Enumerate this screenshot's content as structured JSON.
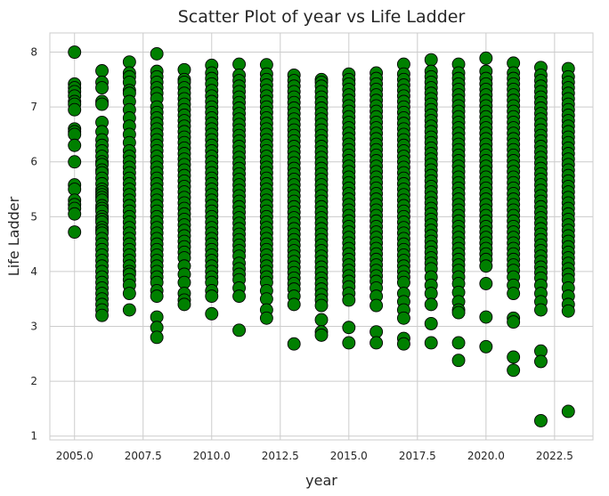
{
  "chart_data": {
    "type": "scatter",
    "title": "Scatter Plot of year vs Life Ladder",
    "xlabel": "year",
    "ylabel": "Life Ladder",
    "xlim": [
      2004.1,
      2023.9
    ],
    "ylim": [
      0.93,
      8.35
    ],
    "x_ticks": [
      2005.0,
      2007.5,
      2010.0,
      2012.5,
      2015.0,
      2017.5,
      2020.0,
      2022.5
    ],
    "x_tick_labels": [
      "2005.0",
      "2007.5",
      "2010.0",
      "2012.5",
      "2015.0",
      "2017.5",
      "2020.0",
      "2022.5"
    ],
    "y_ticks": [
      1,
      2,
      3,
      4,
      5,
      6,
      7,
      8
    ],
    "y_tick_labels": [
      "1",
      "2",
      "3",
      "4",
      "5",
      "6",
      "7",
      "8"
    ],
    "grid": true,
    "marker_color": "#008000",
    "marker_edge_color": "#000000",
    "points_by_year": [
      {
        "year": 2005,
        "values": [
          8.0,
          7.42,
          7.35,
          7.28,
          7.2,
          7.1,
          7.05,
          6.95,
          6.6,
          6.55,
          6.5,
          6.3,
          6.0,
          5.58,
          5.5,
          5.3,
          5.22,
          5.15,
          5.05,
          4.72
        ]
      },
      {
        "year": 2006,
        "values": [
          7.66,
          7.45,
          7.35,
          7.1,
          7.05,
          6.72,
          6.55,
          6.4,
          6.3,
          6.2,
          6.1,
          6.0,
          5.95,
          5.85,
          5.8,
          5.7,
          5.6,
          5.5,
          5.45,
          5.4,
          5.35,
          5.3,
          5.2,
          5.15,
          5.1,
          5.0,
          4.95,
          4.9,
          4.8,
          4.75,
          4.7,
          4.6,
          4.5,
          4.4,
          4.3,
          4.2,
          4.1,
          4.0,
          3.9,
          3.8,
          3.7,
          3.6,
          3.5,
          3.4,
          3.3,
          3.2
        ]
      },
      {
        "year": 2007,
        "values": [
          7.82,
          7.62,
          7.55,
          7.45,
          7.3,
          7.25,
          7.1,
          6.95,
          6.8,
          6.65,
          6.5,
          6.35,
          6.2,
          6.1,
          6.0,
          5.9,
          5.8,
          5.7,
          5.6,
          5.5,
          5.4,
          5.3,
          5.2,
          5.1,
          5.0,
          4.9,
          4.8,
          4.7,
          4.6,
          4.5,
          4.4,
          4.3,
          4.2,
          4.1,
          4.0,
          3.95,
          3.85,
          3.75,
          3.6,
          3.3
        ]
      },
      {
        "year": 2008,
        "values": [
          7.97,
          7.65,
          7.55,
          7.45,
          7.35,
          7.25,
          7.15,
          7.0,
          6.9,
          6.8,
          6.7,
          6.6,
          6.5,
          6.4,
          6.3,
          6.2,
          6.1,
          6.0,
          5.9,
          5.8,
          5.7,
          5.6,
          5.5,
          5.4,
          5.3,
          5.2,
          5.1,
          5.0,
          4.9,
          4.8,
          4.7,
          4.6,
          4.5,
          4.4,
          4.3,
          4.2,
          4.1,
          4.0,
          3.9,
          3.8,
          3.65,
          3.55,
          3.17,
          2.98,
          2.8
        ]
      },
      {
        "year": 2009,
        "values": [
          7.68,
          7.5,
          7.45,
          7.35,
          7.25,
          7.15,
          7.05,
          6.95,
          6.85,
          6.75,
          6.65,
          6.55,
          6.45,
          6.35,
          6.25,
          6.15,
          6.05,
          5.95,
          5.85,
          5.75,
          5.65,
          5.55,
          5.45,
          5.35,
          5.25,
          5.15,
          5.05,
          4.95,
          4.85,
          4.75,
          4.65,
          4.55,
          4.45,
          4.35,
          4.25,
          4.1,
          3.95,
          3.8,
          3.6,
          3.48,
          3.4
        ]
      },
      {
        "year": 2010,
        "values": [
          7.76,
          7.62,
          7.52,
          7.42,
          7.3,
          7.2,
          7.1,
          7.0,
          6.9,
          6.8,
          6.7,
          6.6,
          6.5,
          6.4,
          6.3,
          6.2,
          6.1,
          6.0,
          5.9,
          5.8,
          5.7,
          5.6,
          5.5,
          5.4,
          5.3,
          5.2,
          5.1,
          5.0,
          4.9,
          4.8,
          4.7,
          4.6,
          4.5,
          4.4,
          4.3,
          4.2,
          4.1,
          4.0,
          3.9,
          3.8,
          3.65,
          3.55,
          3.23
        ]
      },
      {
        "year": 2011,
        "values": [
          7.78,
          7.58,
          7.48,
          7.38,
          7.28,
          7.18,
          7.08,
          6.98,
          6.88,
          6.78,
          6.68,
          6.58,
          6.48,
          6.38,
          6.28,
          6.18,
          6.08,
          5.98,
          5.88,
          5.78,
          5.68,
          5.58,
          5.48,
          5.38,
          5.28,
          5.18,
          5.08,
          4.98,
          4.88,
          4.78,
          4.68,
          4.58,
          4.48,
          4.38,
          4.28,
          4.15,
          4.05,
          3.95,
          3.85,
          3.7,
          3.55,
          2.93
        ]
      },
      {
        "year": 2012,
        "values": [
          7.77,
          7.6,
          7.5,
          7.4,
          7.3,
          7.2,
          7.1,
          7.0,
          6.9,
          6.8,
          6.7,
          6.6,
          6.5,
          6.4,
          6.3,
          6.2,
          6.1,
          6.0,
          5.9,
          5.8,
          5.7,
          5.6,
          5.5,
          5.4,
          5.3,
          5.2,
          5.1,
          5.0,
          4.9,
          4.8,
          4.7,
          4.6,
          4.5,
          4.4,
          4.3,
          4.2,
          4.1,
          4.0,
          3.9,
          3.8,
          3.65,
          3.5,
          3.3,
          3.15
        ]
      },
      {
        "year": 2013,
        "values": [
          7.58,
          7.48,
          7.38,
          7.28,
          7.18,
          7.08,
          6.98,
          6.88,
          6.78,
          6.68,
          6.58,
          6.48,
          6.38,
          6.28,
          6.18,
          6.08,
          5.98,
          5.88,
          5.78,
          5.68,
          5.58,
          5.48,
          5.38,
          5.28,
          5.18,
          5.08,
          4.98,
          4.88,
          4.78,
          4.68,
          4.58,
          4.48,
          4.38,
          4.28,
          4.18,
          4.08,
          3.98,
          3.88,
          3.78,
          3.68,
          3.55,
          3.4,
          2.68
        ]
      },
      {
        "year": 2014,
        "values": [
          7.5,
          7.45,
          7.38,
          7.28,
          7.18,
          7.08,
          6.98,
          6.88,
          6.78,
          6.68,
          6.58,
          6.48,
          6.38,
          6.28,
          6.18,
          6.08,
          5.98,
          5.88,
          5.78,
          5.68,
          5.58,
          5.48,
          5.38,
          5.28,
          5.18,
          5.08,
          4.98,
          4.88,
          4.78,
          4.68,
          4.58,
          4.48,
          4.38,
          4.28,
          4.18,
          4.08,
          3.98,
          3.88,
          3.78,
          3.68,
          3.58,
          3.48,
          3.38,
          3.12,
          2.9,
          2.84
        ]
      },
      {
        "year": 2015,
        "values": [
          7.6,
          7.5,
          7.42,
          7.32,
          7.22,
          7.12,
          7.02,
          6.92,
          6.82,
          6.72,
          6.62,
          6.52,
          6.42,
          6.32,
          6.22,
          6.12,
          6.02,
          5.92,
          5.82,
          5.72,
          5.62,
          5.52,
          5.42,
          5.32,
          5.22,
          5.12,
          5.02,
          4.92,
          4.82,
          4.72,
          4.62,
          4.52,
          4.42,
          4.32,
          4.22,
          4.12,
          4.02,
          3.92,
          3.82,
          3.72,
          3.6,
          3.48,
          2.98,
          2.7
        ]
      },
      {
        "year": 2016,
        "values": [
          7.62,
          7.52,
          7.42,
          7.32,
          7.22,
          7.12,
          7.02,
          6.92,
          6.82,
          6.72,
          6.62,
          6.52,
          6.42,
          6.32,
          6.22,
          6.12,
          6.02,
          5.92,
          5.82,
          5.72,
          5.62,
          5.52,
          5.42,
          5.32,
          5.22,
          5.12,
          5.02,
          4.92,
          4.82,
          4.72,
          4.62,
          4.52,
          4.42,
          4.32,
          4.22,
          4.12,
          4.02,
          3.92,
          3.82,
          3.7,
          3.55,
          3.38,
          2.9,
          2.7
        ]
      },
      {
        "year": 2017,
        "values": [
          7.78,
          7.6,
          7.5,
          7.4,
          7.3,
          7.2,
          7.1,
          7.0,
          6.9,
          6.8,
          6.7,
          6.6,
          6.5,
          6.4,
          6.3,
          6.2,
          6.1,
          6.0,
          5.9,
          5.8,
          5.7,
          5.6,
          5.5,
          5.4,
          5.3,
          5.2,
          5.1,
          5.0,
          4.9,
          4.8,
          4.7,
          4.6,
          4.5,
          4.4,
          4.3,
          4.2,
          4.1,
          4.0,
          3.9,
          3.8,
          3.6,
          3.45,
          3.3,
          3.15,
          2.78,
          2.68
        ]
      },
      {
        "year": 2018,
        "values": [
          7.86,
          7.65,
          7.55,
          7.45,
          7.35,
          7.25,
          7.15,
          7.05,
          6.95,
          6.85,
          6.75,
          6.65,
          6.55,
          6.45,
          6.35,
          6.25,
          6.15,
          6.05,
          5.95,
          5.85,
          5.75,
          5.65,
          5.55,
          5.45,
          5.35,
          5.25,
          5.15,
          5.05,
          4.95,
          4.85,
          4.75,
          4.65,
          4.55,
          4.45,
          4.35,
          4.25,
          4.15,
          4.05,
          3.9,
          3.75,
          3.6,
          3.4,
          3.05,
          2.7
        ]
      },
      {
        "year": 2019,
        "values": [
          7.78,
          7.62,
          7.52,
          7.42,
          7.32,
          7.22,
          7.12,
          7.02,
          6.92,
          6.82,
          6.72,
          6.62,
          6.52,
          6.42,
          6.32,
          6.22,
          6.12,
          6.02,
          5.92,
          5.82,
          5.72,
          5.62,
          5.52,
          5.42,
          5.32,
          5.22,
          5.12,
          5.02,
          4.92,
          4.82,
          4.72,
          4.62,
          4.52,
          4.42,
          4.32,
          4.22,
          4.12,
          4.02,
          3.9,
          3.78,
          3.62,
          3.45,
          3.3,
          3.25,
          2.7,
          2.38
        ]
      },
      {
        "year": 2020,
        "values": [
          7.89,
          7.65,
          7.52,
          7.42,
          7.32,
          7.22,
          7.12,
          7.02,
          6.92,
          6.82,
          6.72,
          6.62,
          6.52,
          6.42,
          6.32,
          6.22,
          6.12,
          6.02,
          5.92,
          5.82,
          5.72,
          5.62,
          5.52,
          5.42,
          5.32,
          5.22,
          5.12,
          5.02,
          4.92,
          4.82,
          4.72,
          4.62,
          4.52,
          4.42,
          4.32,
          4.22,
          4.1,
          3.78,
          3.17,
          2.63
        ]
      },
      {
        "year": 2021,
        "values": [
          7.8,
          7.62,
          7.52,
          7.42,
          7.32,
          7.22,
          7.12,
          7.02,
          6.92,
          6.82,
          6.72,
          6.62,
          6.52,
          6.42,
          6.32,
          6.22,
          6.12,
          6.02,
          5.92,
          5.82,
          5.72,
          5.62,
          5.52,
          5.42,
          5.32,
          5.22,
          5.12,
          5.02,
          4.92,
          4.82,
          4.72,
          4.62,
          4.52,
          4.42,
          4.32,
          4.22,
          4.12,
          4.02,
          3.9,
          3.75,
          3.6,
          3.15,
          3.08,
          2.44,
          2.2
        ]
      },
      {
        "year": 2022,
        "values": [
          7.72,
          7.58,
          7.48,
          7.38,
          7.28,
          7.18,
          7.08,
          6.98,
          6.88,
          6.78,
          6.68,
          6.58,
          6.48,
          6.38,
          6.28,
          6.18,
          6.08,
          5.98,
          5.88,
          5.78,
          5.68,
          5.58,
          5.48,
          5.38,
          5.28,
          5.18,
          5.08,
          4.98,
          4.88,
          4.78,
          4.68,
          4.58,
          4.48,
          4.38,
          4.28,
          4.18,
          4.08,
          3.98,
          3.88,
          3.75,
          3.6,
          3.45,
          3.3,
          2.55,
          2.36,
          1.28
        ]
      },
      {
        "year": 2023,
        "values": [
          7.7,
          7.55,
          7.45,
          7.35,
          7.25,
          7.15,
          7.05,
          6.95,
          6.85,
          6.75,
          6.65,
          6.55,
          6.45,
          6.35,
          6.25,
          6.15,
          6.05,
          5.95,
          5.85,
          5.75,
          5.65,
          5.55,
          5.45,
          5.35,
          5.25,
          5.15,
          5.05,
          4.95,
          4.85,
          4.75,
          4.65,
          4.55,
          4.45,
          4.35,
          4.25,
          4.15,
          4.05,
          3.95,
          3.85,
          3.7,
          3.55,
          3.4,
          3.28,
          1.45
        ]
      }
    ]
  }
}
